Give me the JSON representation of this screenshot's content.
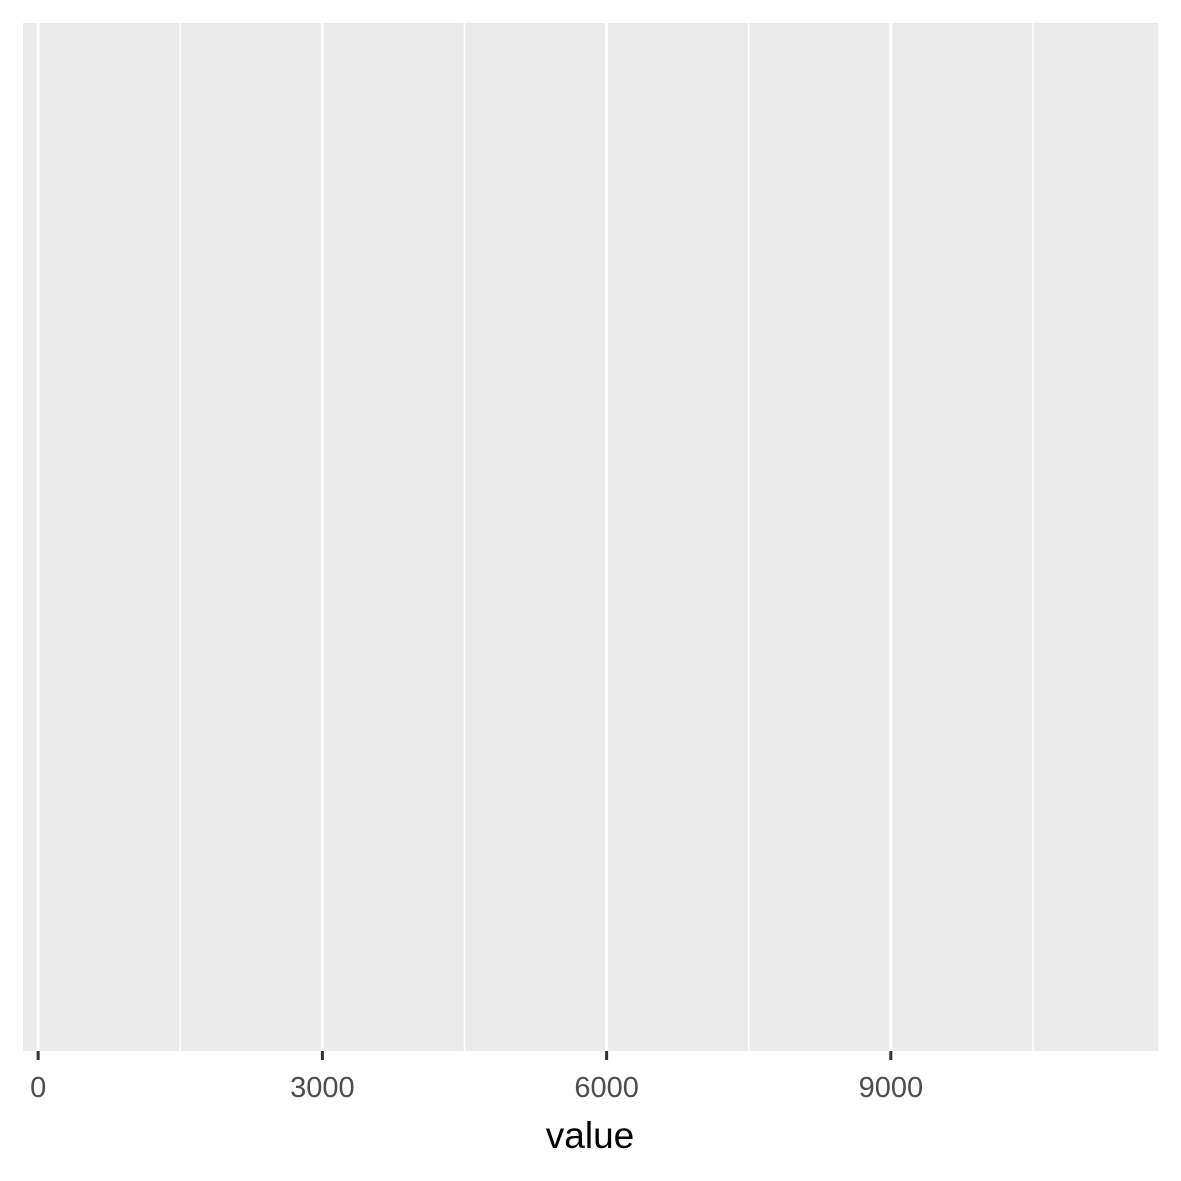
{
  "chart_data": {
    "type": "scatter",
    "title": "",
    "xlabel": "value",
    "ylabel": "",
    "xlim": [
      -160,
      11820
    ],
    "x_ticks": [
      0,
      3000,
      6000,
      9000
    ],
    "x_tick_labels": [
      "0",
      "3000",
      "6000",
      "9000"
    ],
    "x_minor_grid": [
      1500,
      4500,
      7500,
      10500
    ],
    "y_ticks": [],
    "series": [],
    "grid": true,
    "legend": "none",
    "colors": {
      "panel_background": "#ebebeb",
      "grid_major": "#ffffff",
      "grid_minor": "#ffffff",
      "tick_mark": "#333333",
      "tick_label": "#4d4d4d",
      "axis_title": "#000000"
    }
  }
}
